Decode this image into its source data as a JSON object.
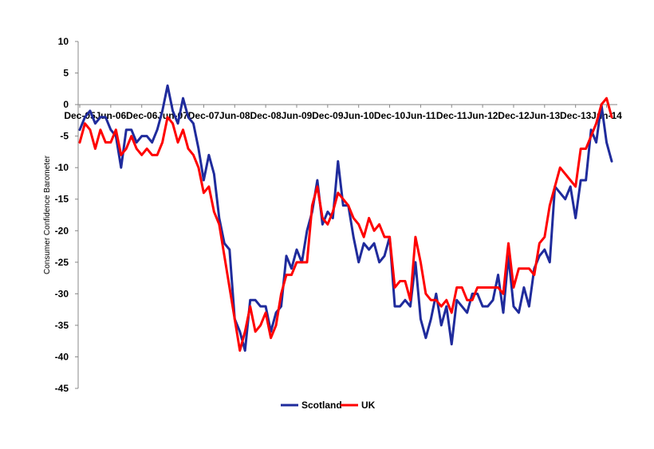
{
  "chart_data": {
    "type": "line",
    "ylabel": "Consumer Confidence Barometer",
    "xlabel": "",
    "ylim": [
      -45,
      10
    ],
    "yticks": [
      10,
      5,
      0,
      -5,
      -10,
      -15,
      -20,
      -25,
      -30,
      -35,
      -40,
      -45
    ],
    "x_tick_labels": [
      "Dec-05",
      "Jun-06",
      "Dec-06",
      "Jun-07",
      "Dec-07",
      "Jun-08",
      "Dec-08",
      "Jun-09",
      "Dec-09",
      "Jun-10",
      "Dec-10",
      "Jun-11",
      "Dec-11",
      "Jun-12",
      "Dec-12",
      "Jun-13",
      "Dec-13",
      "Jun-14"
    ],
    "x_tick_label_position": "at y=0, below axis line",
    "grid": false,
    "legend": {
      "position": "bottom-center",
      "entries": [
        "Scotland",
        "UK"
      ]
    },
    "series": [
      {
        "name": "Scotland",
        "color": "#1f2b9c",
        "points": [
          [
            0,
            -4
          ],
          [
            1,
            -2
          ],
          [
            2,
            -1
          ],
          [
            3,
            -3
          ],
          [
            4,
            -2
          ],
          [
            5,
            -2
          ],
          [
            6,
            -4
          ],
          [
            7,
            -5
          ],
          [
            8,
            -10
          ],
          [
            9,
            -4
          ],
          [
            10,
            -4
          ],
          [
            11,
            -6
          ],
          [
            12,
            -5
          ],
          [
            13,
            -5
          ],
          [
            14,
            -6
          ],
          [
            15,
            -4
          ],
          [
            16,
            -1
          ],
          [
            17,
            3
          ],
          [
            18,
            -1
          ],
          [
            19,
            -3
          ],
          [
            20,
            1
          ],
          [
            21,
            -2
          ],
          [
            22,
            -3
          ],
          [
            23,
            -7
          ],
          [
            24,
            -12
          ],
          [
            25,
            -8
          ],
          [
            26,
            -11
          ],
          [
            27,
            -18
          ],
          [
            28,
            -22
          ],
          [
            29,
            -23
          ],
          [
            30,
            -34
          ],
          [
            31,
            -36
          ],
          [
            32,
            -39
          ],
          [
            33,
            -31
          ],
          [
            34,
            -31
          ],
          [
            35,
            -32
          ],
          [
            36,
            -32
          ],
          [
            37,
            -36
          ],
          [
            38,
            -33
          ],
          [
            39,
            -32
          ],
          [
            40,
            -24
          ],
          [
            41,
            -26
          ],
          [
            42,
            -23
          ],
          [
            43,
            -25
          ],
          [
            44,
            -20
          ],
          [
            45,
            -17
          ],
          [
            46,
            -12
          ],
          [
            47,
            -19
          ],
          [
            48,
            -17
          ],
          [
            49,
            -18
          ],
          [
            50,
            -9
          ],
          [
            51,
            -16
          ],
          [
            52,
            -16
          ],
          [
            53,
            -21
          ],
          [
            54,
            -25
          ],
          [
            55,
            -22
          ],
          [
            56,
            -23
          ],
          [
            57,
            -22
          ],
          [
            58,
            -25
          ],
          [
            59,
            -24
          ],
          [
            60,
            -21
          ],
          [
            61,
            -32
          ],
          [
            62,
            -32
          ],
          [
            63,
            -31
          ],
          [
            64,
            -32
          ],
          [
            65,
            -25
          ],
          [
            66,
            -34
          ],
          [
            67,
            -37
          ],
          [
            68,
            -34
          ],
          [
            69,
            -30
          ],
          [
            70,
            -35
          ],
          [
            71,
            -32
          ],
          [
            72,
            -38
          ],
          [
            73,
            -31
          ],
          [
            74,
            -32
          ],
          [
            75,
            -33
          ],
          [
            76,
            -30
          ],
          [
            77,
            -30
          ],
          [
            78,
            -32
          ],
          [
            79,
            -32
          ],
          [
            80,
            -31
          ],
          [
            81,
            -27
          ],
          [
            82,
            -33
          ],
          [
            83,
            -24
          ],
          [
            84,
            -32
          ],
          [
            85,
            -33
          ],
          [
            86,
            -29
          ],
          [
            87,
            -32
          ],
          [
            88,
            -26
          ],
          [
            89,
            -24
          ],
          [
            90,
            -23
          ],
          [
            91,
            -25
          ],
          [
            92,
            -13
          ],
          [
            93,
            -14
          ],
          [
            94,
            -15
          ],
          [
            95,
            -13
          ],
          [
            96,
            -18
          ],
          [
            97,
            -12
          ],
          [
            98,
            -12
          ],
          [
            99,
            -4
          ],
          [
            100,
            -6
          ],
          [
            101,
            0
          ],
          [
            102,
            -6
          ],
          [
            103,
            -9
          ]
        ]
      },
      {
        "name": "UK",
        "color": "#ff0000",
        "points": [
          [
            0,
            -6
          ],
          [
            1,
            -3
          ],
          [
            2,
            -4
          ],
          [
            3,
            -7
          ],
          [
            4,
            -4
          ],
          [
            5,
            -6
          ],
          [
            6,
            -6
          ],
          [
            7,
            -4
          ],
          [
            8,
            -8
          ],
          [
            9,
            -7
          ],
          [
            10,
            -5
          ],
          [
            11,
            -7
          ],
          [
            12,
            -8
          ],
          [
            13,
            -7
          ],
          [
            14,
            -8
          ],
          [
            15,
            -8
          ],
          [
            16,
            -6
          ],
          [
            17,
            -2
          ],
          [
            18,
            -3
          ],
          [
            19,
            -6
          ],
          [
            20,
            -4
          ],
          [
            21,
            -7
          ],
          [
            22,
            -8
          ],
          [
            23,
            -10
          ],
          [
            24,
            -14
          ],
          [
            25,
            -13
          ],
          [
            26,
            -17
          ],
          [
            27,
            -19
          ],
          [
            28,
            -24
          ],
          [
            29,
            -29
          ],
          [
            30,
            -34
          ],
          [
            31,
            -39
          ],
          [
            32,
            -36
          ],
          [
            33,
            -32
          ],
          [
            34,
            -36
          ],
          [
            35,
            -35
          ],
          [
            36,
            -33
          ],
          [
            37,
            -37
          ],
          [
            38,
            -35
          ],
          [
            39,
            -30
          ],
          [
            40,
            -27
          ],
          [
            41,
            -27
          ],
          [
            42,
            -25
          ],
          [
            43,
            -25
          ],
          [
            44,
            -25
          ],
          [
            45,
            -16
          ],
          [
            46,
            -13
          ],
          [
            47,
            -18
          ],
          [
            48,
            -19
          ],
          [
            49,
            -17
          ],
          [
            50,
            -14
          ],
          [
            51,
            -15
          ],
          [
            52,
            -16
          ],
          [
            53,
            -18
          ],
          [
            54,
            -19
          ],
          [
            55,
            -21
          ],
          [
            56,
            -18
          ],
          [
            57,
            -20
          ],
          [
            58,
            -19
          ],
          [
            59,
            -21
          ],
          [
            60,
            -21
          ],
          [
            61,
            -29
          ],
          [
            62,
            -28
          ],
          [
            63,
            -28
          ],
          [
            64,
            -31
          ],
          [
            65,
            -21
          ],
          [
            66,
            -25
          ],
          [
            67,
            -30
          ],
          [
            68,
            -31
          ],
          [
            69,
            -31
          ],
          [
            70,
            -32
          ],
          [
            71,
            -31
          ],
          [
            72,
            -33
          ],
          [
            73,
            -29
          ],
          [
            74,
            -29
          ],
          [
            75,
            -31
          ],
          [
            76,
            -31
          ],
          [
            77,
            -29
          ],
          [
            78,
            -29
          ],
          [
            79,
            -29
          ],
          [
            80,
            -29
          ],
          [
            81,
            -29
          ],
          [
            82,
            -30
          ],
          [
            83,
            -22
          ],
          [
            84,
            -29
          ],
          [
            85,
            -26
          ],
          [
            86,
            -26
          ],
          [
            87,
            -26
          ],
          [
            88,
            -27
          ],
          [
            89,
            -22
          ],
          [
            90,
            -21
          ],
          [
            91,
            -16
          ],
          [
            92,
            -13
          ],
          [
            93,
            -10
          ],
          [
            94,
            -11
          ],
          [
            95,
            -12
          ],
          [
            96,
            -13
          ],
          [
            97,
            -7
          ],
          [
            98,
            -7
          ],
          [
            99,
            -5
          ],
          [
            100,
            -3
          ],
          [
            101,
            0
          ],
          [
            102,
            1
          ],
          [
            103,
            -2
          ]
        ]
      }
    ]
  }
}
